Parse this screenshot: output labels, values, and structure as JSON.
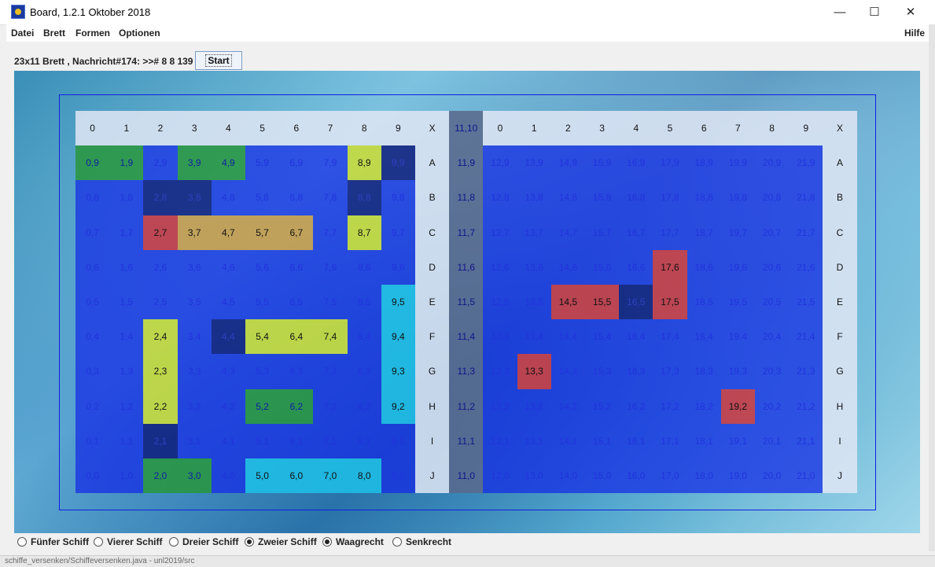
{
  "window": {
    "title": "Board, 1.2.1 Oktober 2018",
    "minimize_glyph": "—",
    "maximize_glyph": "☐",
    "close_glyph": "✕"
  },
  "menu": {
    "datei": "Datei",
    "brett": "Brett",
    "formen": "Formen",
    "optionen": "Optionen",
    "hilfe": "Hilfe"
  },
  "status": {
    "text": "23x11 Brett , Nachricht#174: >># 8 8 139",
    "start_label": "Start"
  },
  "board": {
    "columns": 23,
    "rows": 11,
    "col_headers_left": [
      "0",
      "1",
      "2",
      "3",
      "4",
      "5",
      "6",
      "7",
      "8",
      "9"
    ],
    "x_label": "X",
    "separator_header": "11,10",
    "col_headers_right": [
      "0",
      "1",
      "2",
      "3",
      "4",
      "5",
      "6",
      "7",
      "8",
      "9"
    ],
    "row_letters": [
      "A",
      "B",
      "C",
      "D",
      "E",
      "F",
      "G",
      "H",
      "I",
      "J"
    ],
    "cell_colors": {
      "0,9": "green",
      "1,9": "green",
      "3,9": "green",
      "4,9": "green",
      "8,9": "yellow",
      "9,9": "dark",
      "2,8": "dark",
      "3,8": "dark",
      "8,8": "dark",
      "2,7": "red",
      "3,7": "orange",
      "4,7": "orange",
      "5,7": "orange",
      "6,7": "orange",
      "8,7": "yellow",
      "9,5": "cyan",
      "14,5": "red",
      "15,5": "red",
      "16,5": "dark",
      "17,5": "red",
      "17,6": "red",
      "2,4": "yellow",
      "4,4": "dark",
      "5,4": "yellow",
      "6,4": "yellow",
      "7,4": "yellow",
      "9,4": "cyan",
      "2,3": "yellow",
      "9,3": "cyan",
      "13,3": "red",
      "2,2": "yellow",
      "5,2": "green",
      "6,2": "green",
      "9,2": "cyan",
      "19,2": "red",
      "2,1": "dark",
      "2,0": "green",
      "3,0": "green",
      "5,0": "cyan",
      "6,0": "cyan",
      "7,0": "cyan",
      "8,0": "cyan"
    }
  },
  "options": {
    "fuenfer": "Fünfer Schiff",
    "vierer": "Vierer Schiff",
    "dreier": "Dreier Schiff",
    "zweier": "Zweier Schiff",
    "waagrecht": "Waagrecht",
    "senkrecht": "Senkrecht",
    "selected_ship": "zweier",
    "selected_orientation": "waagrecht"
  },
  "bottom_strip": {
    "text": "schiffe_versenken/Schiffeversenken.java - unl2019/src"
  }
}
